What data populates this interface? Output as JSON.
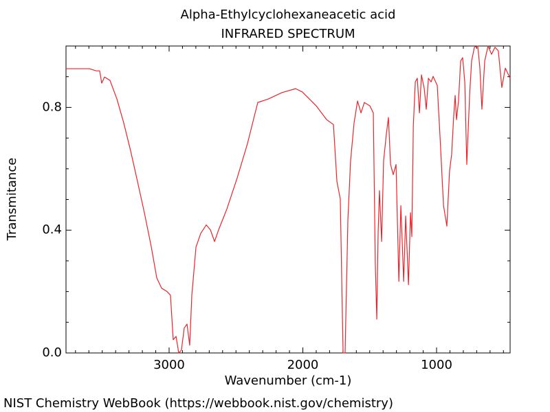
{
  "chart_data": {
    "type": "line",
    "title": "Alpha-Ethylcyclohexaneacetic acid",
    "subtitle": "INFRARED SPECTRUM",
    "x_label": "Wavenumber (cm-1)",
    "y_label": "Transmitance",
    "source": "NIST Chemistry WebBook (https://webbook.nist.gov/chemistry)",
    "xlim": [
      3771,
      450
    ],
    "ylim": [
      0,
      1.0
    ],
    "xticks": [
      3000,
      2000,
      1000
    ],
    "xminor_ticks": [
      3700,
      3600,
      3500,
      3400,
      3300,
      3200,
      3100,
      2900,
      2800,
      2700,
      2600,
      2500,
      2400,
      2300,
      2200,
      2100,
      1900,
      1800,
      1700,
      1600,
      1500,
      1400,
      1300,
      1200,
      1100,
      900,
      800,
      700,
      600,
      500
    ],
    "yticks": [
      {
        "value": 0,
        "label": "0.0"
      },
      0.4,
      0.8
    ],
    "yminor_ticks": [
      0.1,
      0.2,
      0.3,
      0.5,
      0.6,
      0.7,
      0.9
    ],
    "series": [
      {
        "name": "Transmitance",
        "color": "#e8242a",
        "x": [
          3771,
          3596,
          3545,
          3519,
          3504,
          3483,
          3442,
          3390,
          3339,
          3288,
          3236,
          3185,
          3133,
          3092,
          3056,
          3015,
          2990,
          2969,
          2948,
          2928,
          2908,
          2887,
          2866,
          2846,
          2830,
          2799,
          2763,
          2722,
          2691,
          2660,
          2630,
          2568,
          2491,
          2414,
          2337,
          2260,
          2157,
          2054,
          2003,
          1900,
          1822,
          1771,
          1745,
          1720,
          1699,
          1684,
          1663,
          1643,
          1617,
          1591,
          1565,
          1540,
          1499,
          1473,
          1458,
          1447,
          1437,
          1427,
          1411,
          1396,
          1375,
          1360,
          1344,
          1324,
          1303,
          1282,
          1267,
          1246,
          1231,
          1210,
          1195,
          1185,
          1174,
          1159,
          1144,
          1128,
          1113,
          1092,
          1077,
          1061,
          1041,
          1026,
          995,
          974,
          948,
          923,
          903,
          887,
          872,
          861,
          851,
          836,
          820,
          805,
          789,
          774,
          753,
          738,
          717,
          692,
          676,
          661,
          640,
          615,
          589,
          563,
          538,
          512,
          486,
          450
        ],
        "values": [
          0.926,
          0.926,
          0.919,
          0.919,
          0.879,
          0.899,
          0.888,
          0.827,
          0.749,
          0.659,
          0.558,
          0.457,
          0.345,
          0.244,
          0.211,
          0.2,
          0.188,
          0.043,
          0.054,
          0.0,
          0.009,
          0.081,
          0.094,
          0.025,
          0.188,
          0.345,
          0.39,
          0.417,
          0.401,
          0.363,
          0.401,
          0.469,
          0.57,
          0.682,
          0.816,
          0.827,
          0.848,
          0.861,
          0.85,
          0.805,
          0.76,
          0.744,
          0.558,
          0.502,
          0.0,
          0.0,
          0.435,
          0.626,
          0.749,
          0.821,
          0.782,
          0.816,
          0.805,
          0.782,
          0.289,
          0.11,
          0.39,
          0.529,
          0.363,
          0.626,
          0.715,
          0.767,
          0.614,
          0.581,
          0.614,
          0.233,
          0.48,
          0.233,
          0.446,
          0.222,
          0.457,
          0.379,
          0.738,
          0.883,
          0.895,
          0.782,
          0.906,
          0.861,
          0.794,
          0.895,
          0.883,
          0.901,
          0.872,
          0.704,
          0.48,
          0.413,
          0.592,
          0.648,
          0.771,
          0.839,
          0.76,
          0.821,
          0.951,
          0.962,
          0.883,
          0.614,
          0.839,
          0.951,
          0.996,
          1.0,
          0.928,
          0.794,
          0.951,
          1.0,
          0.973,
          0.996,
          0.984,
          0.865,
          0.928,
          0.895
        ]
      }
    ]
  }
}
